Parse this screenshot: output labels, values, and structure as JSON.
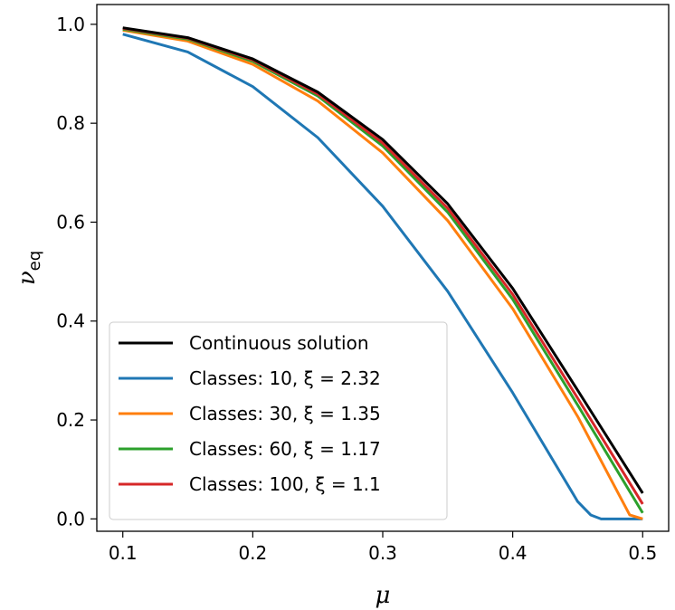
{
  "chart_data": {
    "type": "line",
    "title": "",
    "xlabel": "μ",
    "ylabel": "ν",
    "ylabel_subscript": "eq",
    "xlim": [
      0.08,
      0.52
    ],
    "ylim": [
      -0.025,
      1.04
    ],
    "xticks": [
      0.1,
      0.2,
      0.3,
      0.4,
      0.5
    ],
    "xtick_labels": [
      "0.1",
      "0.2",
      "0.3",
      "0.4",
      "0.5"
    ],
    "yticks": [
      0.0,
      0.2,
      0.4,
      0.6,
      0.8,
      1.0
    ],
    "ytick_labels": [
      "0.0",
      "0.2",
      "0.4",
      "0.6",
      "0.8",
      "1.0"
    ],
    "grid": false,
    "legend_position": "lower-left",
    "series": [
      {
        "name": "Continuous solution",
        "color": "#000000",
        "x": [
          0.1,
          0.15,
          0.2,
          0.25,
          0.3,
          0.35,
          0.4,
          0.45,
          0.5
        ],
        "y": [
          0.993,
          0.973,
          0.93,
          0.863,
          0.767,
          0.637,
          0.466,
          0.26,
          0.052
        ]
      },
      {
        "name": "Classes: 10, ξ = 2.32",
        "color": "#1f77b4",
        "x": [
          0.1,
          0.15,
          0.2,
          0.25,
          0.3,
          0.35,
          0.4,
          0.45,
          0.46,
          0.468,
          0.5
        ],
        "y": [
          0.98,
          0.944,
          0.874,
          0.771,
          0.632,
          0.46,
          0.255,
          0.035,
          0.008,
          0.0,
          0.0
        ]
      },
      {
        "name": "Classes: 30, ξ = 1.35",
        "color": "#ff7f0e",
        "x": [
          0.1,
          0.15,
          0.2,
          0.25,
          0.3,
          0.35,
          0.4,
          0.45,
          0.49,
          0.5
        ],
        "y": [
          0.988,
          0.966,
          0.919,
          0.845,
          0.74,
          0.603,
          0.425,
          0.207,
          0.008,
          0.0
        ]
      },
      {
        "name": "Classes: 60, ξ = 1.17",
        "color": "#2ca02c",
        "x": [
          0.1,
          0.15,
          0.2,
          0.25,
          0.3,
          0.35,
          0.4,
          0.45,
          0.5
        ],
        "y": [
          0.99,
          0.97,
          0.925,
          0.855,
          0.754,
          0.62,
          0.444,
          0.23,
          0.012
        ]
      },
      {
        "name": "Classes: 100, ξ = 1.1",
        "color": "#d62728",
        "x": [
          0.1,
          0.15,
          0.2,
          0.25,
          0.3,
          0.35,
          0.4,
          0.45,
          0.5
        ],
        "y": [
          0.992,
          0.972,
          0.928,
          0.859,
          0.76,
          0.628,
          0.454,
          0.244,
          0.03
        ]
      }
    ]
  }
}
